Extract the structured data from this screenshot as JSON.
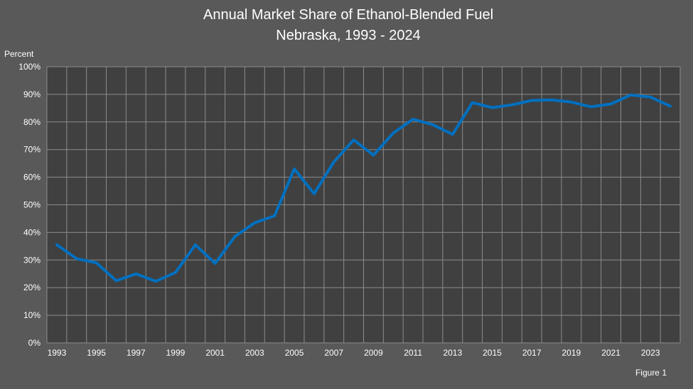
{
  "chart_data": {
    "type": "line",
    "title": "Annual Market Share of Ethanol-Blended Fuel",
    "subtitle": "Nebraska, 1993 - 2024",
    "xlabel": "",
    "ylabel": "Percent",
    "ylim": [
      0,
      100
    ],
    "yticks": [
      0,
      10,
      20,
      30,
      40,
      50,
      60,
      70,
      80,
      90,
      100
    ],
    "ytick_labels": [
      "0%",
      "10%",
      "20%",
      "30%",
      "40%",
      "50%",
      "60%",
      "70%",
      "80%",
      "90%",
      "100%"
    ],
    "xlim": [
      1993,
      2024
    ],
    "xtick_labels": [
      "1993",
      "1995",
      "1997",
      "1999",
      "2001",
      "2003",
      "2005",
      "2007",
      "2009",
      "2011",
      "2013",
      "2015",
      "2017",
      "2019",
      "2021",
      "2023"
    ],
    "grid": true,
    "legend": "none",
    "line_color": "#0070C0",
    "x": [
      1993,
      1994,
      1995,
      1996,
      1997,
      1998,
      1999,
      2000,
      2001,
      2002,
      2003,
      2004,
      2005,
      2006,
      2007,
      2008,
      2009,
      2010,
      2011,
      2012,
      2013,
      2014,
      2015,
      2016,
      2017,
      2018,
      2019,
      2020,
      2021,
      2022,
      2023,
      2024
    ],
    "series": [
      {
        "values": [
          35.5,
          30.5,
          29.0,
          22.5,
          25.0,
          22.3,
          25.5,
          35.5,
          28.8,
          38.5,
          43.5,
          46.0,
          63.0,
          54.0,
          65.5,
          73.5,
          68.0,
          76.0,
          81.0,
          79.0,
          75.5,
          87.0,
          85.2,
          86.2,
          87.8,
          88.0,
          87.2,
          85.5,
          86.5,
          89.8,
          89.0,
          85.7
        ]
      }
    ]
  },
  "footer": {
    "figure_label": "Figure 1"
  }
}
